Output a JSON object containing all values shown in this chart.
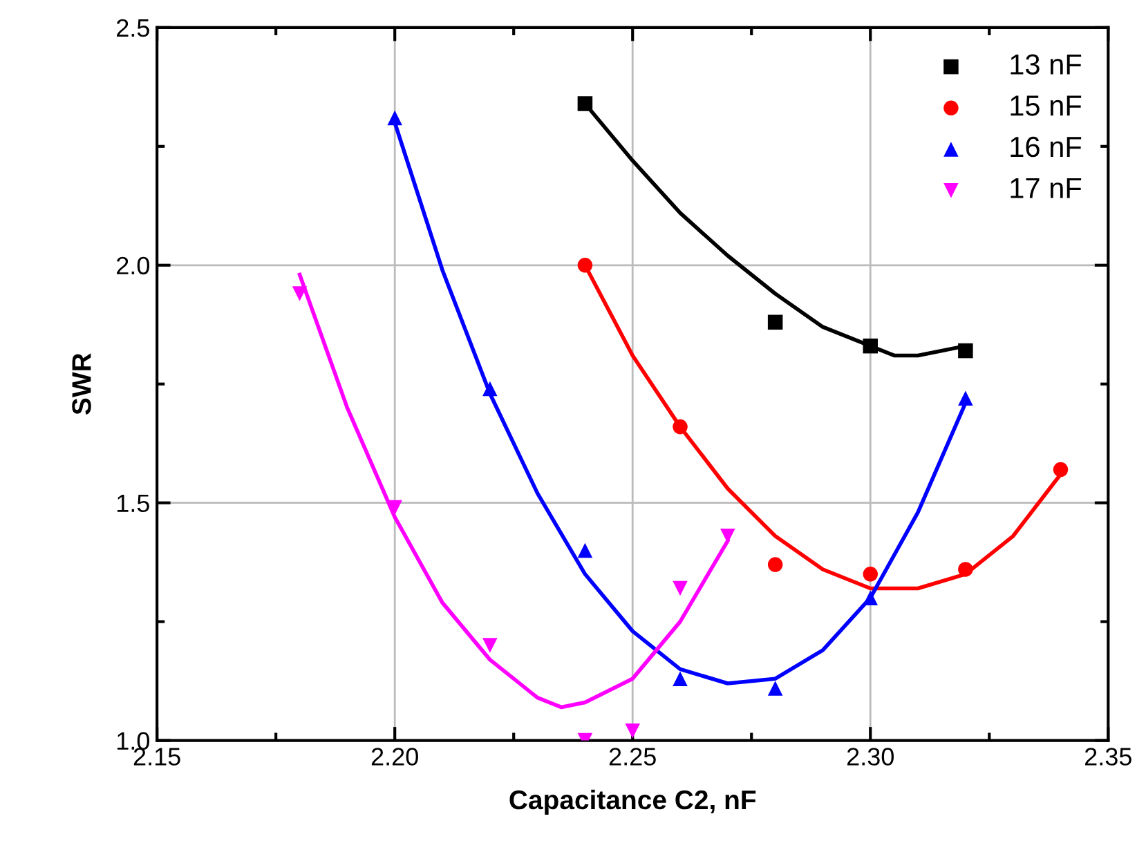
{
  "chart_data": {
    "type": "scatter",
    "xlabel": "Capacitance C2, nF",
    "ylabel": "SWR",
    "xlim": [
      2.15,
      2.35
    ],
    "ylim": [
      1.0,
      2.5
    ],
    "xticks": [
      2.15,
      {
        "value": 2.2,
        "label": "2.20"
      },
      2.25,
      {
        "value": 2.3,
        "label": "2.30"
      },
      2.35
    ],
    "yticks": [
      {
        "value": 1,
        "label": "1.0"
      },
      1.5,
      {
        "value": 2,
        "label": "2.0"
      },
      2.5
    ],
    "grid": true,
    "legend": "top right",
    "series": [
      {
        "name": "13 nF",
        "color": "#000000",
        "marker": "square",
        "x": [
          2.24,
          2.28,
          2.3,
          2.32
        ],
        "values": [
          2.34,
          1.88,
          1.83,
          1.82
        ]
      },
      {
        "name": "15 nF",
        "color": "#ff0000",
        "marker": "circle",
        "x": [
          2.24,
          2.26,
          2.28,
          2.3,
          2.32,
          2.34
        ],
        "values": [
          2.0,
          1.66,
          1.37,
          1.35,
          1.36,
          1.57
        ]
      },
      {
        "name": "16 nF",
        "color": "#0000ff",
        "marker": "triangle",
        "x": [
          2.2,
          2.22,
          2.24,
          2.26,
          2.28,
          2.3,
          2.32
        ],
        "values": [
          2.31,
          1.74,
          1.4,
          1.13,
          1.11,
          1.3,
          1.72
        ]
      },
      {
        "name": "17 nF",
        "color": "#ff00ff",
        "marker": "triangle_down",
        "x": [
          2.18,
          2.2,
          2.22,
          2.24,
          2.25,
          2.26,
          2.27
        ],
        "values": [
          1.94,
          1.49,
          1.2,
          1.0,
          1.02,
          1.32,
          1.43
        ]
      },
      {
        "type": "line",
        "color": "#000000",
        "x": [
          2.24,
          2.25,
          2.26,
          2.27,
          2.28,
          2.29,
          2.3,
          2.305,
          2.31,
          2.32
        ],
        "values": [
          2.34,
          2.22,
          2.11,
          2.02,
          1.94,
          1.87,
          1.83,
          1.81,
          1.81,
          1.83
        ]
      },
      {
        "type": "line",
        "color": "#ff0000",
        "x": [
          2.24,
          2.25,
          2.26,
          2.27,
          2.28,
          2.29,
          2.3,
          2.31,
          2.32,
          2.33,
          2.34
        ],
        "values": [
          2.0,
          1.81,
          1.66,
          1.53,
          1.43,
          1.36,
          1.32,
          1.32,
          1.35,
          1.43,
          1.56
        ]
      },
      {
        "type": "line",
        "color": "#0000ff",
        "x": [
          2.2,
          2.21,
          2.22,
          2.23,
          2.24,
          2.25,
          2.26,
          2.27,
          2.28,
          2.29,
          2.3,
          2.31,
          2.32
        ],
        "values": [
          2.3,
          1.99,
          1.73,
          1.52,
          1.35,
          1.23,
          1.15,
          1.12,
          1.13,
          1.19,
          1.3,
          1.48,
          1.71
        ]
      },
      {
        "type": "line",
        "color": "#ff00ff",
        "x": [
          2.18,
          2.19,
          2.2,
          2.21,
          2.22,
          2.23,
          2.235,
          2.24,
          2.25,
          2.26,
          2.27
        ],
        "values": [
          1.98,
          1.7,
          1.47,
          1.29,
          1.17,
          1.09,
          1.07,
          1.08,
          1.13,
          1.25,
          1.42
        ]
      }
    ]
  }
}
